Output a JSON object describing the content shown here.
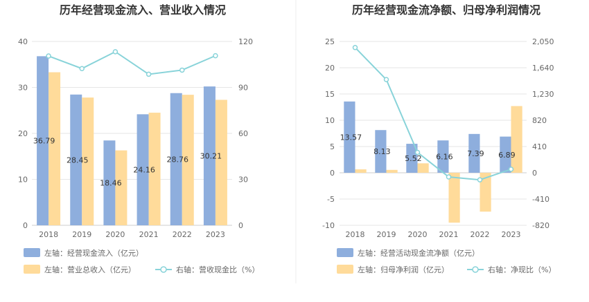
{
  "chart_data": [
    {
      "type": "bar",
      "title": "历年经营现金流入、营业收入情况",
      "categories": [
        "2018",
        "2019",
        "2020",
        "2021",
        "2022",
        "2023"
      ],
      "left_ticks": [
        "0",
        "10",
        "20",
        "30",
        "40"
      ],
      "right_ticks": [
        "0",
        "30",
        "60",
        "90",
        "120"
      ],
      "ylim_left": [
        0,
        40
      ],
      "ylim_right": [
        0,
        120
      ],
      "series": [
        {
          "name": "左轴：经营现金流入（亿元）",
          "axis": "left",
          "kind": "bar",
          "color": "#8eaedd",
          "values": [
            36.79,
            28.45,
            18.46,
            24.16,
            28.76,
            30.21
          ],
          "labels": [
            "36.79",
            "28.45",
            "18.46",
            "24.16",
            "28.76",
            "30.21"
          ]
        },
        {
          "name": "左轴：营业总收入（亿元）",
          "axis": "left",
          "kind": "bar",
          "color": "#ffdb9a",
          "values": [
            33.3,
            27.8,
            16.3,
            24.5,
            28.4,
            27.3
          ]
        },
        {
          "name": "右轴：营收现金比（%）",
          "axis": "right",
          "kind": "line",
          "color": "#88d3d9",
          "values": [
            110.5,
            102.3,
            113.3,
            98.6,
            101.3,
            110.7
          ]
        }
      ]
    },
    {
      "type": "bar",
      "title": "历年经营现金流净额、归母净利润情况",
      "categories": [
        "2018",
        "2019",
        "2020",
        "2021",
        "2022",
        "2023"
      ],
      "left_ticks": [
        "-10",
        "-5",
        "0",
        "5",
        "10",
        "15",
        "20",
        "25"
      ],
      "right_ticks": [
        "-820",
        "-410",
        "0",
        "410",
        "820",
        "1,230",
        "1,640",
        "2,050"
      ],
      "ylim_left": [
        -10,
        25
      ],
      "ylim_right": [
        -820,
        2050
      ],
      "series": [
        {
          "name": "左轴：经营活动现金流净额（亿元）",
          "axis": "left",
          "kind": "bar",
          "color": "#8eaedd",
          "values": [
            13.57,
            8.13,
            5.52,
            6.16,
            7.39,
            6.89
          ],
          "labels": [
            "13.57",
            "8.13",
            "5.52",
            "6.16",
            "7.39",
            "6.89"
          ]
        },
        {
          "name": "左轴：归母净利润（亿元）",
          "axis": "left",
          "kind": "bar",
          "color": "#ffdb9a",
          "values": [
            0.65,
            0.55,
            1.8,
            -9.5,
            -7.4,
            12.7
          ]
        },
        {
          "name": "右轴：净现比（%）",
          "axis": "right",
          "kind": "line",
          "color": "#88d3d9",
          "values": [
            1955,
            1455,
            318,
            -65,
            -110,
            55
          ]
        }
      ]
    }
  ]
}
